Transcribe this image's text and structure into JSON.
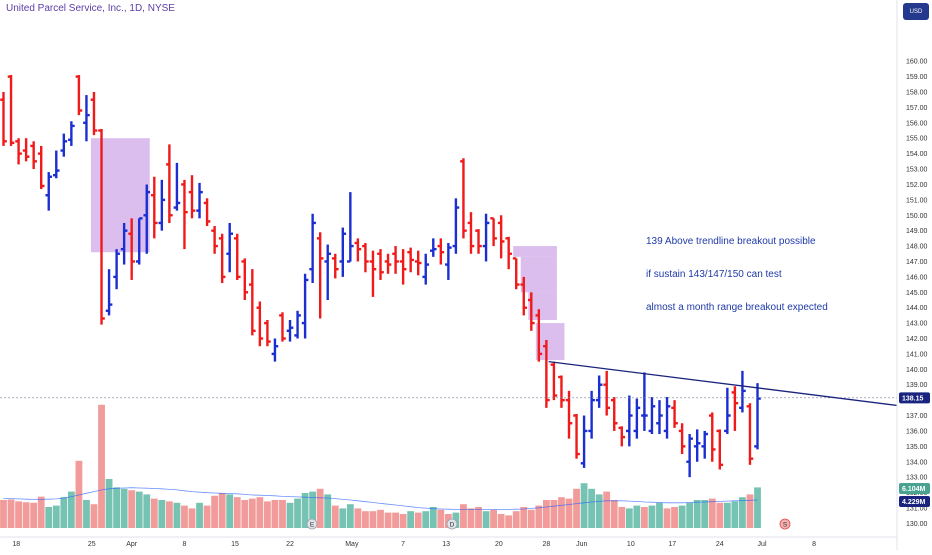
{
  "header": {
    "title": "United Parcel Service, Inc., 1D, NYSE",
    "currency": "USD"
  },
  "annotation": {
    "lines": [
      "139 Above trendline breakout possible",
      "if sustain 143/147/150 can test",
      "almost a month range breakout expected"
    ]
  },
  "colors": {
    "up": "#1b2fd1",
    "down": "#f01a1a",
    "trendline": "#1a237e",
    "zone": "#c89be3",
    "vol_up": "#5fb8a6",
    "vol_down": "#f08a8a",
    "price_tag": "#1a237e",
    "vol_tag_a": "#4aa391",
    "vol_tag_b": "#1a237e"
  },
  "chart_data": {
    "type": "ohlc",
    "title": "United Parcel Service, Inc., 1D, NYSE",
    "y_ticks": [
      "160.00",
      "159.00",
      "158.00",
      "157.00",
      "156.00",
      "155.00",
      "154.00",
      "153.00",
      "152.00",
      "151.00",
      "150.00",
      "149.00",
      "148.00",
      "147.00",
      "146.00",
      "145.00",
      "144.00",
      "143.00",
      "142.00",
      "141.00",
      "140.00",
      "139.00",
      "138.00",
      "137.00",
      "136.00",
      "135.00",
      "134.00",
      "133.00",
      "132.00",
      "131.00",
      "130.00"
    ],
    "y_range": [
      129.7,
      161.7
    ],
    "x_ticks": [
      "18",
      "25",
      "Apr",
      "8",
      "15",
      "22",
      "May",
      "7",
      "13",
      "20",
      "28",
      "Jun",
      "10",
      "17",
      "24",
      "Jul",
      "8"
    ],
    "last_price": "138.15",
    "volume_tags": [
      "6.104M",
      "4.229M"
    ],
    "bars": [
      {
        "o": 157.5,
        "h": 158.0,
        "l": 154.5,
        "c": 154.8
      },
      {
        "o": 159.0,
        "h": 159.1,
        "l": 154.5,
        "c": 154.7
      },
      {
        "o": 154.8,
        "h": 155.0,
        "l": 153.3,
        "c": 154.0
      },
      {
        "o": 154.2,
        "h": 155.0,
        "l": 153.5,
        "c": 153.8
      },
      {
        "o": 154.5,
        "h": 154.8,
        "l": 153.0,
        "c": 153.5
      },
      {
        "o": 154.0,
        "h": 154.5,
        "l": 151.7,
        "c": 151.9
      },
      {
        "o": 151.3,
        "h": 152.8,
        "l": 150.3,
        "c": 152.5
      },
      {
        "o": 152.6,
        "h": 154.2,
        "l": 152.4,
        "c": 152.9
      },
      {
        "o": 154.2,
        "h": 155.3,
        "l": 153.8,
        "c": 154.8
      },
      {
        "o": 154.9,
        "h": 156.1,
        "l": 154.5,
        "c": 155.8
      },
      {
        "o": 159.0,
        "h": 159.1,
        "l": 156.5,
        "c": 156.8
      },
      {
        "o": 156.0,
        "h": 157.8,
        "l": 154.8,
        "c": 156.5
      },
      {
        "o": 157.5,
        "h": 158.0,
        "l": 155.2,
        "c": 155.5
      },
      {
        "o": 155.5,
        "h": 155.6,
        "l": 142.9,
        "c": 143.3
      },
      {
        "o": 143.8,
        "h": 146.5,
        "l": 143.5,
        "c": 144.2
      },
      {
        "o": 146.0,
        "h": 147.8,
        "l": 145.2,
        "c": 147.5
      },
      {
        "o": 147.8,
        "h": 149.5,
        "l": 146.8,
        "c": 149.0
      },
      {
        "o": 148.8,
        "h": 149.8,
        "l": 145.8,
        "c": 147.0
      },
      {
        "o": 147.0,
        "h": 149.8,
        "l": 146.8,
        "c": 149.8
      },
      {
        "o": 150.0,
        "h": 152.0,
        "l": 147.5,
        "c": 151.5
      },
      {
        "o": 151.3,
        "h": 152.5,
        "l": 148.5,
        "c": 149.5
      },
      {
        "o": 149.5,
        "h": 152.3,
        "l": 149.0,
        "c": 151.0
      },
      {
        "o": 153.3,
        "h": 154.6,
        "l": 149.5,
        "c": 150.0
      },
      {
        "o": 150.5,
        "h": 153.4,
        "l": 150.3,
        "c": 150.8
      },
      {
        "o": 152.0,
        "h": 152.3,
        "l": 147.8,
        "c": 150.2
      },
      {
        "o": 151.5,
        "h": 152.6,
        "l": 149.8,
        "c": 150.3
      },
      {
        "o": 150.3,
        "h": 152.1,
        "l": 149.8,
        "c": 151.5
      },
      {
        "o": 150.8,
        "h": 151.1,
        "l": 149.3,
        "c": 149.6
      },
      {
        "o": 149.0,
        "h": 149.3,
        "l": 147.5,
        "c": 148.0
      },
      {
        "o": 148.5,
        "h": 148.8,
        "l": 145.6,
        "c": 146.0
      },
      {
        "o": 147.5,
        "h": 149.5,
        "l": 146.3,
        "c": 148.8
      },
      {
        "o": 148.5,
        "h": 148.8,
        "l": 145.8,
        "c": 146.0
      },
      {
        "o": 147.0,
        "h": 147.2,
        "l": 144.5,
        "c": 145.0
      },
      {
        "o": 145.5,
        "h": 146.5,
        "l": 142.2,
        "c": 142.5
      },
      {
        "o": 144.0,
        "h": 144.4,
        "l": 141.5,
        "c": 142.0
      },
      {
        "o": 143.0,
        "h": 143.2,
        "l": 141.5,
        "c": 141.8
      },
      {
        "o": 141.0,
        "h": 142.0,
        "l": 140.5,
        "c": 141.5
      },
      {
        "o": 143.5,
        "h": 143.7,
        "l": 141.8,
        "c": 142.0
      },
      {
        "o": 142.5,
        "h": 143.2,
        "l": 141.8,
        "c": 142.7
      },
      {
        "o": 142.2,
        "h": 143.8,
        "l": 142.0,
        "c": 143.5
      },
      {
        "o": 143.0,
        "h": 146.2,
        "l": 142.0,
        "c": 145.8
      },
      {
        "o": 146.5,
        "h": 150.1,
        "l": 145.6,
        "c": 149.5
      },
      {
        "o": 148.5,
        "h": 148.9,
        "l": 143.3,
        "c": 147.2
      },
      {
        "o": 147.0,
        "h": 148.1,
        "l": 144.5,
        "c": 147.5
      },
      {
        "o": 147.2,
        "h": 147.5,
        "l": 145.9,
        "c": 146.5
      },
      {
        "o": 147.0,
        "h": 149.2,
        "l": 146.0,
        "c": 148.8
      },
      {
        "o": 147.0,
        "h": 151.5,
        "l": 147.0,
        "c": 148.0
      },
      {
        "o": 148.2,
        "h": 148.5,
        "l": 147.0,
        "c": 147.8
      },
      {
        "o": 148.0,
        "h": 148.2,
        "l": 146.3,
        "c": 147.0
      },
      {
        "o": 147.0,
        "h": 147.7,
        "l": 144.7,
        "c": 146.5
      },
      {
        "o": 147.5,
        "h": 147.8,
        "l": 145.8,
        "c": 146.3
      },
      {
        "o": 147.0,
        "h": 147.5,
        "l": 146.2,
        "c": 146.8
      },
      {
        "o": 147.5,
        "h": 148.0,
        "l": 146.2,
        "c": 147.0
      },
      {
        "o": 147.0,
        "h": 147.8,
        "l": 145.5,
        "c": 146.5
      },
      {
        "o": 147.6,
        "h": 147.9,
        "l": 146.3,
        "c": 147.1
      },
      {
        "o": 147.0,
        "h": 147.7,
        "l": 146.1,
        "c": 146.9
      },
      {
        "o": 146.0,
        "h": 147.5,
        "l": 145.5,
        "c": 146.8
      },
      {
        "o": 147.7,
        "h": 148.5,
        "l": 147.3,
        "c": 147.8
      },
      {
        "o": 148.0,
        "h": 148.5,
        "l": 146.8,
        "c": 147.6
      },
      {
        "o": 146.8,
        "h": 148.2,
        "l": 145.8,
        "c": 147.9
      },
      {
        "o": 148.0,
        "h": 151.1,
        "l": 147.5,
        "c": 150.5
      },
      {
        "o": 153.5,
        "h": 153.7,
        "l": 148.5,
        "c": 149.0
      },
      {
        "o": 149.5,
        "h": 150.2,
        "l": 147.5,
        "c": 148.0
      },
      {
        "o": 149.0,
        "h": 149.1,
        "l": 147.5,
        "c": 148.0
      },
      {
        "o": 148.0,
        "h": 150.1,
        "l": 147.0,
        "c": 149.5
      },
      {
        "o": 149.8,
        "h": 149.8,
        "l": 148.0,
        "c": 148.5
      },
      {
        "o": 149.5,
        "h": 150.0,
        "l": 147.2,
        "c": 148.3
      },
      {
        "o": 148.5,
        "h": 148.6,
        "l": 146.5,
        "c": 147.5
      },
      {
        "o": 147.2,
        "h": 147.2,
        "l": 145.2,
        "c": 145.5
      },
      {
        "o": 145.5,
        "h": 146.0,
        "l": 143.5,
        "c": 144.0
      },
      {
        "o": 144.5,
        "h": 145.0,
        "l": 142.5,
        "c": 143.0
      },
      {
        "o": 143.5,
        "h": 143.9,
        "l": 140.5,
        "c": 141.0
      },
      {
        "o": 141.5,
        "h": 141.9,
        "l": 137.5,
        "c": 138.0
      },
      {
        "o": 140.3,
        "h": 140.5,
        "l": 138.0,
        "c": 138.3
      },
      {
        "o": 139.5,
        "h": 139.6,
        "l": 137.5,
        "c": 138.0
      },
      {
        "o": 138.0,
        "h": 138.6,
        "l": 135.5,
        "c": 136.5
      },
      {
        "o": 137.0,
        "h": 137.1,
        "l": 134.2,
        "c": 134.5
      },
      {
        "o": 133.9,
        "h": 137.0,
        "l": 133.6,
        "c": 136.0
      },
      {
        "o": 136.0,
        "h": 138.6,
        "l": 135.5,
        "c": 138.0
      },
      {
        "o": 138.0,
        "h": 139.6,
        "l": 137.5,
        "c": 139.0
      },
      {
        "o": 139.0,
        "h": 139.9,
        "l": 137.0,
        "c": 137.5
      },
      {
        "o": 138.0,
        "h": 138.2,
        "l": 136.0,
        "c": 136.5
      },
      {
        "o": 136.2,
        "h": 136.3,
        "l": 135.0,
        "c": 135.6
      },
      {
        "o": 136.0,
        "h": 138.3,
        "l": 135.0,
        "c": 137.0
      },
      {
        "o": 136.0,
        "h": 138.1,
        "l": 135.5,
        "c": 137.5
      },
      {
        "o": 137.0,
        "h": 139.8,
        "l": 136.0,
        "c": 137.0
      },
      {
        "o": 136.0,
        "h": 138.2,
        "l": 135.8,
        "c": 137.6
      },
      {
        "o": 136.5,
        "h": 138.0,
        "l": 135.8,
        "c": 137.0
      },
      {
        "o": 136.0,
        "h": 138.2,
        "l": 135.5,
        "c": 137.6
      },
      {
        "o": 137.5,
        "h": 138.0,
        "l": 136.2,
        "c": 136.5
      },
      {
        "o": 136.0,
        "h": 136.5,
        "l": 134.5,
        "c": 135.0
      },
      {
        "o": 134.0,
        "h": 135.8,
        "l": 133.0,
        "c": 135.5
      },
      {
        "o": 135.0,
        "h": 136.1,
        "l": 134.0,
        "c": 135.2
      },
      {
        "o": 135.0,
        "h": 136.0,
        "l": 134.2,
        "c": 135.8
      },
      {
        "o": 137.0,
        "h": 137.2,
        "l": 134.0,
        "c": 134.8
      },
      {
        "o": 136.0,
        "h": 136.1,
        "l": 133.5,
        "c": 133.8
      },
      {
        "o": 136.0,
        "h": 138.8,
        "l": 135.8,
        "c": 137.0
      },
      {
        "o": 138.5,
        "h": 138.9,
        "l": 136.0,
        "c": 137.8
      },
      {
        "o": 137.5,
        "h": 139.9,
        "l": 137.2,
        "c": 138.6
      },
      {
        "o": 137.6,
        "h": 137.8,
        "l": 133.8,
        "c": 134.2
      },
      {
        "o": 135.0,
        "h": 139.1,
        "l": 134.8,
        "c": 138.1
      }
    ],
    "volume": [
      {
        "v": 1.0,
        "up": false
      },
      {
        "v": 1.02,
        "up": false
      },
      {
        "v": 0.95,
        "up": false
      },
      {
        "v": 0.92,
        "up": false
      },
      {
        "v": 0.9,
        "up": false
      },
      {
        "v": 1.12,
        "up": false
      },
      {
        "v": 0.75,
        "up": true
      },
      {
        "v": 0.8,
        "up": true
      },
      {
        "v": 1.1,
        "up": true
      },
      {
        "v": 1.3,
        "up": true
      },
      {
        "v": 2.4,
        "up": false
      },
      {
        "v": 1.0,
        "up": true
      },
      {
        "v": 0.85,
        "up": false
      },
      {
        "v": 4.4,
        "up": false
      },
      {
        "v": 1.75,
        "up": true
      },
      {
        "v": 1.45,
        "up": true
      },
      {
        "v": 1.4,
        "up": true
      },
      {
        "v": 1.35,
        "up": false
      },
      {
        "v": 1.3,
        "up": true
      },
      {
        "v": 1.2,
        "up": true
      },
      {
        "v": 1.05,
        "up": false
      },
      {
        "v": 1.0,
        "up": true
      },
      {
        "v": 0.95,
        "up": false
      },
      {
        "v": 0.9,
        "up": true
      },
      {
        "v": 0.8,
        "up": false
      },
      {
        "v": 0.7,
        "up": false
      },
      {
        "v": 0.9,
        "up": true
      },
      {
        "v": 0.8,
        "up": false
      },
      {
        "v": 1.15,
        "up": false
      },
      {
        "v": 1.25,
        "up": false
      },
      {
        "v": 1.2,
        "up": true
      },
      {
        "v": 1.1,
        "up": false
      },
      {
        "v": 1.0,
        "up": false
      },
      {
        "v": 1.05,
        "up": false
      },
      {
        "v": 1.1,
        "up": false
      },
      {
        "v": 0.95,
        "up": false
      },
      {
        "v": 1.0,
        "up": false
      },
      {
        "v": 1.0,
        "up": false
      },
      {
        "v": 0.9,
        "up": true
      },
      {
        "v": 1.05,
        "up": true
      },
      {
        "v": 1.25,
        "up": true
      },
      {
        "v": 1.3,
        "up": true
      },
      {
        "v": 1.4,
        "up": false
      },
      {
        "v": 1.2,
        "up": true
      },
      {
        "v": 0.8,
        "up": false
      },
      {
        "v": 0.7,
        "up": true
      },
      {
        "v": 0.85,
        "up": true
      },
      {
        "v": 0.7,
        "up": false
      },
      {
        "v": 0.6,
        "up": false
      },
      {
        "v": 0.6,
        "up": false
      },
      {
        "v": 0.65,
        "up": false
      },
      {
        "v": 0.55,
        "up": false
      },
      {
        "v": 0.55,
        "up": false
      },
      {
        "v": 0.5,
        "up": false
      },
      {
        "v": 0.6,
        "up": true
      },
      {
        "v": 0.55,
        "up": false
      },
      {
        "v": 0.6,
        "up": true
      },
      {
        "v": 0.75,
        "up": true
      },
      {
        "v": 0.65,
        "up": false
      },
      {
        "v": 0.5,
        "up": false
      },
      {
        "v": 0.55,
        "up": true
      },
      {
        "v": 0.85,
        "up": false
      },
      {
        "v": 0.7,
        "up": false
      },
      {
        "v": 0.75,
        "up": false
      },
      {
        "v": 0.6,
        "up": true
      },
      {
        "v": 0.65,
        "up": false
      },
      {
        "v": 0.5,
        "up": false
      },
      {
        "v": 0.45,
        "up": false
      },
      {
        "v": 0.6,
        "up": false
      },
      {
        "v": 0.75,
        "up": false
      },
      {
        "v": 0.65,
        "up": false
      },
      {
        "v": 0.8,
        "up": false
      },
      {
        "v": 1.0,
        "up": false
      },
      {
        "v": 1.0,
        "up": false
      },
      {
        "v": 1.1,
        "up": false
      },
      {
        "v": 1.05,
        "up": false
      },
      {
        "v": 1.4,
        "up": false
      },
      {
        "v": 1.6,
        "up": true
      },
      {
        "v": 1.4,
        "up": true
      },
      {
        "v": 1.2,
        "up": true
      },
      {
        "v": 1.3,
        "up": false
      },
      {
        "v": 1.0,
        "up": false
      },
      {
        "v": 0.75,
        "up": false
      },
      {
        "v": 0.7,
        "up": true
      },
      {
        "v": 0.8,
        "up": true
      },
      {
        "v": 0.75,
        "up": false
      },
      {
        "v": 0.8,
        "up": true
      },
      {
        "v": 0.9,
        "up": true
      },
      {
        "v": 0.7,
        "up": false
      },
      {
        "v": 0.75,
        "up": false
      },
      {
        "v": 0.8,
        "up": true
      },
      {
        "v": 0.9,
        "up": true
      },
      {
        "v": 1.0,
        "up": true
      },
      {
        "v": 1.0,
        "up": true
      },
      {
        "v": 1.05,
        "up": false
      },
      {
        "v": 0.9,
        "up": false
      },
      {
        "v": 0.9,
        "up": true
      },
      {
        "v": 0.95,
        "up": true
      },
      {
        "v": 1.1,
        "up": true
      },
      {
        "v": 1.2,
        "up": false
      },
      {
        "v": 1.45,
        "up": true
      }
    ],
    "volume_ma": [
      1.05,
      1.05,
      1.04,
      1.03,
      1.02,
      1.02,
      1.03,
      1.04,
      1.07,
      1.12,
      1.18,
      1.24,
      1.3,
      1.36,
      1.4,
      1.42,
      1.43,
      1.44,
      1.43,
      1.42,
      1.41,
      1.4,
      1.38,
      1.36,
      1.33,
      1.3,
      1.28,
      1.26,
      1.25,
      1.24,
      1.23,
      1.22,
      1.2,
      1.18,
      1.17,
      1.16,
      1.15,
      1.13,
      1.12,
      1.11,
      1.1,
      1.09,
      1.08,
      1.07,
      1.05,
      1.02,
      1.0,
      0.97,
      0.94,
      0.91,
      0.88,
      0.85,
      0.82,
      0.79,
      0.76,
      0.73,
      0.71,
      0.69,
      0.68,
      0.67,
      0.66,
      0.66,
      0.66,
      0.66,
      0.66,
      0.66,
      0.66,
      0.66,
      0.67,
      0.68,
      0.7,
      0.72,
      0.75,
      0.78,
      0.81,
      0.84,
      0.87,
      0.9,
      0.93,
      0.95,
      0.97,
      0.97,
      0.97,
      0.96,
      0.95,
      0.93,
      0.92,
      0.91,
      0.9,
      0.9,
      0.9,
      0.91,
      0.92,
      0.93,
      0.94,
      0.95,
      0.96,
      0.97,
      0.98,
      0.99,
      1.0
    ],
    "zones": [
      {
        "b0": 12,
        "b1": 19,
        "top": 155.0,
        "bottom": 147.6
      },
      {
        "b0": 68,
        "b1": 73,
        "top": 148.0,
        "bottom": 147.3
      },
      {
        "b0": 69,
        "b1": 73,
        "top": 147.3,
        "bottom": 145.0
      },
      {
        "b0": 70,
        "b1": 73,
        "top": 145.0,
        "bottom": 143.2
      },
      {
        "b0": 71,
        "b1": 74,
        "top": 143.0,
        "bottom": 140.6
      }
    ],
    "trendline": {
      "b0": 72.3,
      "p0": 140.5,
      "b1": 127.5,
      "p1": 137.1
    },
    "x_tick_bars": [
      1.7,
      11.7,
      17.0,
      24.0,
      30.7,
      38.0,
      46.2,
      53.0,
      58.7,
      65.7,
      72.0,
      76.7,
      83.2,
      88.7,
      95.0,
      100.6,
      107.5
    ]
  }
}
